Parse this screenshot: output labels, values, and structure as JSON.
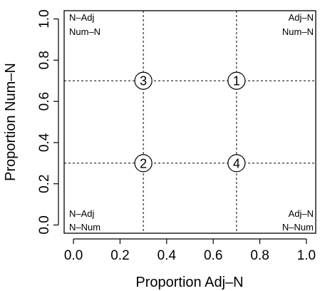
{
  "chart_data": {
    "type": "scatter",
    "title": "",
    "xlabel": "Proportion Adj–N",
    "ylabel": "Proportion Num–N",
    "xlim": [
      -0.04,
      1.04
    ],
    "ylim": [
      -0.04,
      1.04
    ],
    "xticks": [
      "0.0",
      "0.2",
      "0.4",
      "0.6",
      "0.8",
      "1.0"
    ],
    "yticks": [
      "0.0",
      "0.2",
      "0.4",
      "0.6",
      "0.8",
      "1.0"
    ],
    "grid": false,
    "reference_lines": {
      "x": [
        0.3,
        0.7
      ],
      "y": [
        0.3,
        0.7
      ],
      "style": "dashed"
    },
    "points": [
      {
        "x": 0.7,
        "y": 0.7,
        "label": "1"
      },
      {
        "x": 0.3,
        "y": 0.3,
        "label": "2"
      },
      {
        "x": 0.3,
        "y": 0.7,
        "label": "3"
      },
      {
        "x": 0.7,
        "y": 0.3,
        "label": "4"
      }
    ],
    "corner_labels": {
      "top_left": [
        "N–Adj",
        "Num–N"
      ],
      "top_right": [
        "Adj–N",
        "Num–N"
      ],
      "bottom_left": [
        "N–Adj",
        "N–Num"
      ],
      "bottom_right": [
        "Adj–N",
        "N–Num"
      ]
    }
  }
}
